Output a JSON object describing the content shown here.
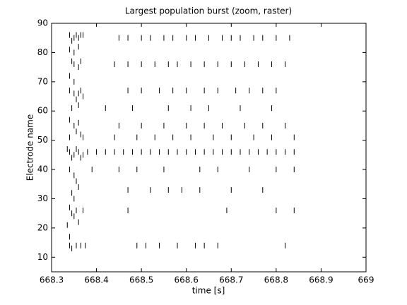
{
  "chart_data": {
    "type": "raster",
    "title": "Largest population burst (zoom, raster)",
    "x_label": "time [s]",
    "y_label": "Electrode name",
    "xlim": [
      668.3,
      669
    ],
    "xticks": [
      668.3,
      668.4,
      668.5,
      668.6,
      668.7,
      668.8,
      668.9,
      669
    ],
    "ylim": [
      5,
      90
    ],
    "yticks": [
      10,
      20,
      30,
      40,
      50,
      60,
      70,
      80,
      90
    ],
    "color": "#000000",
    "x": [
      668.34,
      668.345,
      668.35,
      668.355,
      668.36,
      668.365,
      668.37,
      668.34,
      668.35,
      668.36,
      668.345,
      668.35,
      668.36,
      668.365,
      668.34,
      668.35,
      668.34,
      668.35,
      668.355,
      668.36,
      668.365,
      668.37,
      668.345,
      668.36,
      668.34,
      668.35,
      668.355,
      668.36,
      668.365,
      668.34,
      668.37,
      668.335,
      668.34,
      668.345,
      668.35,
      668.355,
      668.36,
      668.365,
      668.37,
      668.34,
      668.35,
      668.355,
      668.36,
      668.345,
      668.35,
      668.34,
      668.345,
      668.35,
      668.355,
      668.36,
      668.37,
      668.335,
      668.34,
      668.34,
      668.345,
      668.355,
      668.365,
      668.375,
      668.45,
      668.47,
      668.5,
      668.52,
      668.55,
      668.57,
      668.6,
      668.62,
      668.65,
      668.68,
      668.7,
      668.72,
      668.75,
      668.77,
      668.8,
      668.83,
      668.44,
      668.47,
      668.5,
      668.53,
      668.56,
      668.58,
      668.61,
      668.64,
      668.67,
      668.7,
      668.73,
      668.76,
      668.79,
      668.82,
      668.47,
      668.5,
      668.54,
      668.57,
      668.6,
      668.64,
      668.67,
      668.71,
      668.74,
      668.77,
      668.8,
      668.42,
      668.48,
      668.56,
      668.61,
      668.65,
      668.72,
      668.79,
      668.45,
      668.5,
      668.55,
      668.6,
      668.64,
      668.68,
      668.73,
      668.77,
      668.82,
      668.44,
      668.49,
      668.53,
      668.57,
      668.61,
      668.66,
      668.7,
      668.75,
      668.79,
      668.84,
      668.38,
      668.4,
      668.42,
      668.44,
      668.46,
      668.48,
      668.5,
      668.52,
      668.54,
      668.56,
      668.58,
      668.6,
      668.62,
      668.64,
      668.66,
      668.68,
      668.7,
      668.72,
      668.74,
      668.76,
      668.78,
      668.8,
      668.82,
      668.84,
      668.39,
      668.45,
      668.49,
      668.55,
      668.63,
      668.67,
      668.74,
      668.8,
      668.84,
      668.47,
      668.52,
      668.56,
      668.59,
      668.63,
      668.7,
      668.77,
      668.47,
      668.69,
      668.8,
      668.84,
      668.49,
      668.51,
      668.54,
      668.58,
      668.62,
      668.64,
      668.67,
      668.82
    ],
    "y": [
      86,
      84,
      85,
      86,
      85,
      86,
      86,
      81,
      80,
      82,
      77,
      76,
      75,
      77,
      72,
      70,
      67,
      66,
      64,
      66,
      67,
      65,
      61,
      62,
      57,
      55,
      53,
      56,
      52,
      51,
      51,
      47,
      46,
      44,
      45,
      47,
      46,
      44,
      45,
      40,
      38,
      36,
      34,
      32,
      30,
      27,
      25,
      24,
      26,
      22,
      26,
      21,
      17,
      14,
      13,
      14,
      14,
      14,
      85,
      85,
      85,
      85,
      85,
      85,
      85,
      85,
      85,
      85,
      85,
      85,
      85,
      85,
      85,
      85,
      76,
      76,
      76,
      76,
      76,
      76,
      76,
      76,
      76,
      76,
      76,
      76,
      76,
      76,
      67,
      67,
      67,
      67,
      67,
      67,
      67,
      67,
      67,
      67,
      67,
      61,
      61,
      61,
      61,
      61,
      61,
      61,
      55,
      55,
      55,
      55,
      55,
      55,
      55,
      55,
      55,
      51,
      51,
      51,
      51,
      51,
      51,
      51,
      51,
      51,
      51,
      46,
      46,
      46,
      46,
      46,
      46,
      46,
      46,
      46,
      46,
      46,
      46,
      46,
      46,
      46,
      46,
      46,
      46,
      46,
      46,
      46,
      46,
      46,
      46,
      40,
      40,
      40,
      40,
      40,
      40,
      40,
      40,
      40,
      33,
      33,
      33,
      33,
      33,
      33,
      33,
      26,
      26,
      26,
      26,
      14,
      14,
      14,
      14,
      14,
      14,
      14,
      14
    ]
  }
}
